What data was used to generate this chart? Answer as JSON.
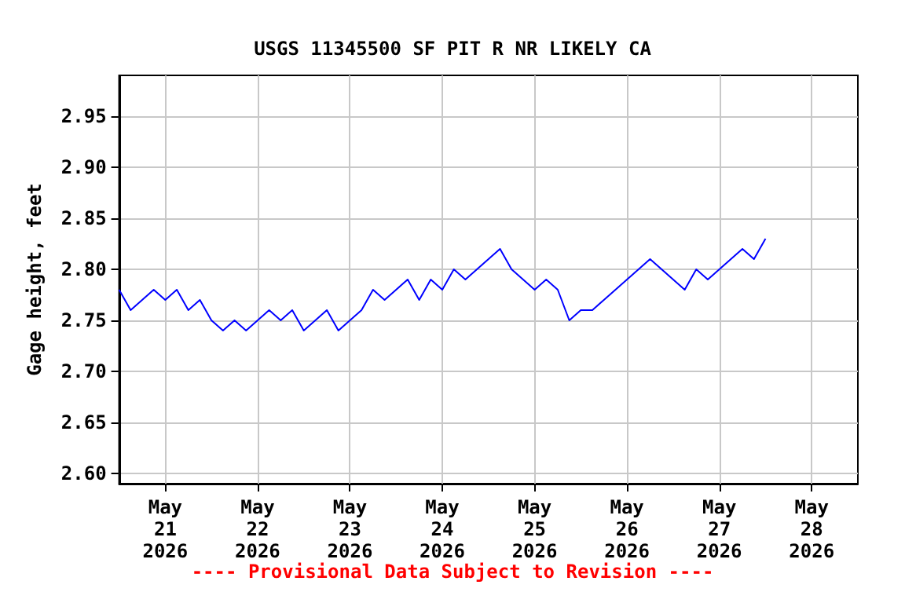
{
  "chart_data": {
    "type": "line",
    "title": "USGS 11345500 SF PIT R NR LIKELY CA",
    "ylabel": "Gage height, feet",
    "annotations": [
      "---- Provisional Data Subject to Revision ----"
    ],
    "x": [
      "2026-05-20T12:00",
      "2026-05-20T15:00",
      "2026-05-20T18:00",
      "2026-05-20T21:00",
      "2026-05-21T00:00",
      "2026-05-21T03:00",
      "2026-05-21T06:00",
      "2026-05-21T09:00",
      "2026-05-21T12:00",
      "2026-05-21T15:00",
      "2026-05-21T18:00",
      "2026-05-21T21:00",
      "2026-05-22T00:00",
      "2026-05-22T03:00",
      "2026-05-22T06:00",
      "2026-05-22T09:00",
      "2026-05-22T12:00",
      "2026-05-22T15:00",
      "2026-05-22T18:00",
      "2026-05-22T21:00",
      "2026-05-23T00:00",
      "2026-05-23T03:00",
      "2026-05-23T06:00",
      "2026-05-23T09:00",
      "2026-05-23T12:00",
      "2026-05-23T15:00",
      "2026-05-23T18:00",
      "2026-05-23T21:00",
      "2026-05-24T00:00",
      "2026-05-24T03:00",
      "2026-05-24T06:00",
      "2026-05-24T09:00",
      "2026-05-24T12:00",
      "2026-05-24T15:00",
      "2026-05-24T18:00",
      "2026-05-24T21:00",
      "2026-05-25T00:00",
      "2026-05-25T03:00",
      "2026-05-25T06:00",
      "2026-05-25T09:00",
      "2026-05-25T12:00",
      "2026-05-25T15:00",
      "2026-05-25T18:00",
      "2026-05-25T21:00",
      "2026-05-26T00:00",
      "2026-05-26T03:00",
      "2026-05-26T06:00",
      "2026-05-26T09:00",
      "2026-05-26T12:00",
      "2026-05-26T15:00",
      "2026-05-26T18:00",
      "2026-05-26T21:00",
      "2026-05-27T00:00",
      "2026-05-27T03:00",
      "2026-05-27T06:00",
      "2026-05-27T09:00",
      "2026-05-27T12:00"
    ],
    "series": [
      {
        "color": "#0000ff",
        "values": [
          2.78,
          2.76,
          2.77,
          2.78,
          2.77,
          2.78,
          2.76,
          2.77,
          2.75,
          2.74,
          2.75,
          2.74,
          2.75,
          2.76,
          2.75,
          2.76,
          2.74,
          2.75,
          2.76,
          2.74,
          2.75,
          2.76,
          2.78,
          2.77,
          2.78,
          2.79,
          2.77,
          2.79,
          2.78,
          2.8,
          2.79,
          2.8,
          2.81,
          2.82,
          2.8,
          2.79,
          2.78,
          2.79,
          2.78,
          2.75,
          2.76,
          2.76,
          2.77,
          2.78,
          2.79,
          2.8,
          2.81,
          2.8,
          2.79,
          2.78,
          2.8,
          2.79,
          2.8,
          2.81,
          2.82,
          2.81,
          2.83
        ]
      }
    ],
    "xlim": [
      "2026-05-20T12:00",
      "2026-05-28T12:00"
    ],
    "xticks": [
      {
        "value": "2026-05-21",
        "label": "May\n21\n2026"
      },
      {
        "value": "2026-05-22",
        "label": "May\n22\n2026"
      },
      {
        "value": "2026-05-23",
        "label": "May\n23\n2026"
      },
      {
        "value": "2026-05-24",
        "label": "May\n24\n2026"
      },
      {
        "value": "2026-05-25",
        "label": "May\n25\n2026"
      },
      {
        "value": "2026-05-26",
        "label": "May\n26\n2026"
      },
      {
        "value": "2026-05-27",
        "label": "May\n27\n2026"
      },
      {
        "value": "2026-05-28",
        "label": "May\n28\n2026"
      }
    ],
    "ylim": [
      2.59,
      2.99
    ],
    "yticks": [
      {
        "value": 2.6,
        "label": "2.60"
      },
      {
        "value": 2.65,
        "label": "2.65"
      },
      {
        "value": 2.7,
        "label": "2.70"
      },
      {
        "value": 2.75,
        "label": "2.75"
      },
      {
        "value": 2.8,
        "label": "2.80"
      },
      {
        "value": 2.85,
        "label": "2.85"
      },
      {
        "value": 2.9,
        "label": "2.90"
      },
      {
        "value": 2.95,
        "label": "2.95"
      }
    ],
    "grid": true,
    "marker": "none",
    "line_style": "solid"
  }
}
